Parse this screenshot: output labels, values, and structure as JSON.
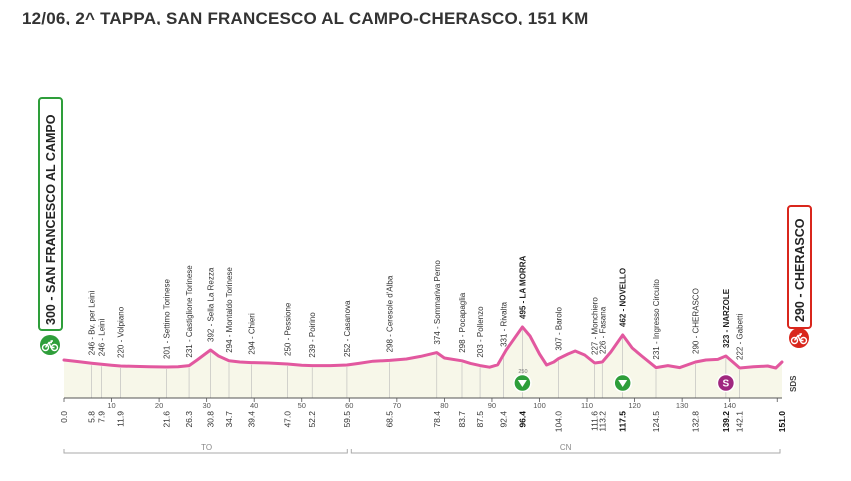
{
  "stage_title": "12/06, 2^ TAPPA, SAN FRANCESCO AL CAMPO-CHERASCO, 151 KM",
  "start": {
    "altitude": "300",
    "name": "SAN FRANCESCO AL CAMPO",
    "label": "300 - SAN FRANCESCO AL CAMPO",
    "color": "#2e9e3a"
  },
  "finish": {
    "altitude": "290",
    "name": "CHERASCO",
    "label": "290 - CHERASCO",
    "color": "#d9261c"
  },
  "chart_data": {
    "type": "area",
    "title": "12/06, 2^ TAPPA, SAN FRANCESCO AL CAMPO-CHERASCO, 151 KM",
    "xlabel": "",
    "ylabel": "",
    "xlim": [
      0,
      151
    ],
    "x_ticks": [
      0,
      10,
      20,
      30,
      40,
      50,
      60,
      70,
      80,
      90,
      100,
      110,
      120,
      130,
      140,
      150
    ],
    "profile_color": "#e2589f",
    "fill_color": "#f7f7e9",
    "profile": [
      [
        0,
        300
      ],
      [
        3,
        292
      ],
      [
        5.8,
        284
      ],
      [
        7.9,
        279
      ],
      [
        10,
        274
      ],
      [
        11.9,
        270
      ],
      [
        15,
        268
      ],
      [
        18,
        266
      ],
      [
        21.6,
        265
      ],
      [
        24,
        266
      ],
      [
        26.3,
        272
      ],
      [
        28,
        300
      ],
      [
        30.8,
        350
      ],
      [
        32.5,
        320
      ],
      [
        34.7,
        296
      ],
      [
        37,
        290
      ],
      [
        39.4,
        287
      ],
      [
        43,
        285
      ],
      [
        47,
        280
      ],
      [
        50,
        274
      ],
      [
        52.2,
        272
      ],
      [
        56,
        272
      ],
      [
        59.5,
        275
      ],
      [
        62,
        283
      ],
      [
        65,
        294
      ],
      [
        68.5,
        298
      ],
      [
        72,
        305
      ],
      [
        75,
        318
      ],
      [
        78.4,
        337
      ],
      [
        80,
        310
      ],
      [
        83.7,
        296
      ],
      [
        85.5,
        283
      ],
      [
        87.5,
        272
      ],
      [
        89.5,
        264
      ],
      [
        91.2,
        276
      ],
      [
        93,
        350
      ],
      [
        96.4,
        465
      ],
      [
        98,
        420
      ],
      [
        100,
        330
      ],
      [
        101.5,
        275
      ],
      [
        103,
        290
      ],
      [
        104,
        307
      ],
      [
        106,
        330
      ],
      [
        107.5,
        345
      ],
      [
        109.5,
        325
      ],
      [
        111.6,
        285
      ],
      [
        113.2,
        290
      ],
      [
        115,
        340
      ],
      [
        117.5,
        425
      ],
      [
        119.5,
        360
      ],
      [
        121.5,
        320
      ],
      [
        124.5,
        262
      ],
      [
        127,
        272
      ],
      [
        129.5,
        262
      ],
      [
        132.8,
        290
      ],
      [
        135,
        300
      ],
      [
        137.5,
        303
      ],
      [
        139.2,
        320
      ],
      [
        140.5,
        293
      ],
      [
        142.1,
        260
      ],
      [
        145,
        266
      ],
      [
        148,
        270
      ],
      [
        149.7,
        260
      ],
      [
        151,
        290
      ]
    ],
    "places": [
      {
        "km": "0.0",
        "x": 0,
        "label": "",
        "bold": false
      },
      {
        "km": "5.8",
        "x": 5.8,
        "label": "246 - Bv. per Leinì",
        "bold": false
      },
      {
        "km": "7.9",
        "x": 7.9,
        "label": "246 - Leinì",
        "bold": false
      },
      {
        "km": "11.9",
        "x": 11.9,
        "label": "220 - Volpiano",
        "bold": false
      },
      {
        "km": "21.6",
        "x": 21.6,
        "label": "201 - Settimo Torinese",
        "bold": false
      },
      {
        "km": "26.3",
        "x": 26.3,
        "label": "231 - Castiglione Torinese",
        "bold": false
      },
      {
        "km": "30.8",
        "x": 30.8,
        "label": "392 - Sella La Rezza",
        "bold": false
      },
      {
        "km": "34.7",
        "x": 34.7,
        "label": "294 - Montaldo Torinese",
        "bold": false
      },
      {
        "km": "39.4",
        "x": 39.4,
        "label": "294 - Chieri",
        "bold": false
      },
      {
        "km": "47.0",
        "x": 47.0,
        "label": "250 - Pessione",
        "bold": false
      },
      {
        "km": "52.2",
        "x": 52.2,
        "label": "239 - Poirino",
        "bold": false
      },
      {
        "km": "59.5",
        "x": 59.5,
        "label": "252 - Casanova",
        "bold": false
      },
      {
        "km": "68.5",
        "x": 68.5,
        "label": "298 - Ceresole d'Alba",
        "bold": false
      },
      {
        "km": "78.4",
        "x": 78.4,
        "label": "374 - Sommariva Perno",
        "bold": false
      },
      {
        "km": "83.7",
        "x": 83.7,
        "label": "298 - Pocapaglia",
        "bold": false
      },
      {
        "km": "87.5",
        "x": 87.5,
        "label": "203 - Pollenzo",
        "bold": false
      },
      {
        "km": "92.4",
        "x": 92.4,
        "label": "331 - Rivalta",
        "bold": false
      },
      {
        "km": "96.4",
        "x": 96.4,
        "label": "495 - LA MORRA",
        "bold": true
      },
      {
        "km": "104.0",
        "x": 104.0,
        "label": "307 - Barolo",
        "bold": false
      },
      {
        "km": "111.6",
        "x": 111.6,
        "label": "227 - Monchiero",
        "bold": false
      },
      {
        "km": "113.2",
        "x": 113.2,
        "label": "226 - Fasana",
        "bold": false
      },
      {
        "km": "117.5",
        "x": 117.5,
        "label": "462 - NOVELLO",
        "bold": true
      },
      {
        "km": "124.5",
        "x": 124.5,
        "label": "231 - Ingresso Circuito",
        "bold": false
      },
      {
        "km": "132.8",
        "x": 132.8,
        "label": "290 - CHERASCO",
        "bold": false
      },
      {
        "km": "139.2",
        "x": 139.2,
        "label": "323 - NARZOLE",
        "bold": true
      },
      {
        "km": "142.1",
        "x": 142.1,
        "label": "222 - Gabetti",
        "bold": false
      },
      {
        "km": "151.0",
        "x": 151.0,
        "label": "",
        "bold": true
      }
    ],
    "markers": [
      {
        "km": 96.4,
        "type": "gpm",
        "symbol": "▼",
        "color": "#2e9e3a"
      },
      {
        "km": 117.5,
        "type": "gpm",
        "symbol": "▼",
        "color": "#2e9e3a"
      },
      {
        "km": 139.2,
        "type": "sprint",
        "symbol": "S",
        "color": "#a0277f"
      }
    ],
    "scale_label": "250",
    "provinces": [
      {
        "name": "TO",
        "from": 0,
        "to": 60
      },
      {
        "name": "CN",
        "from": 60,
        "to": 151
      }
    ],
    "watermark": "SDS"
  }
}
